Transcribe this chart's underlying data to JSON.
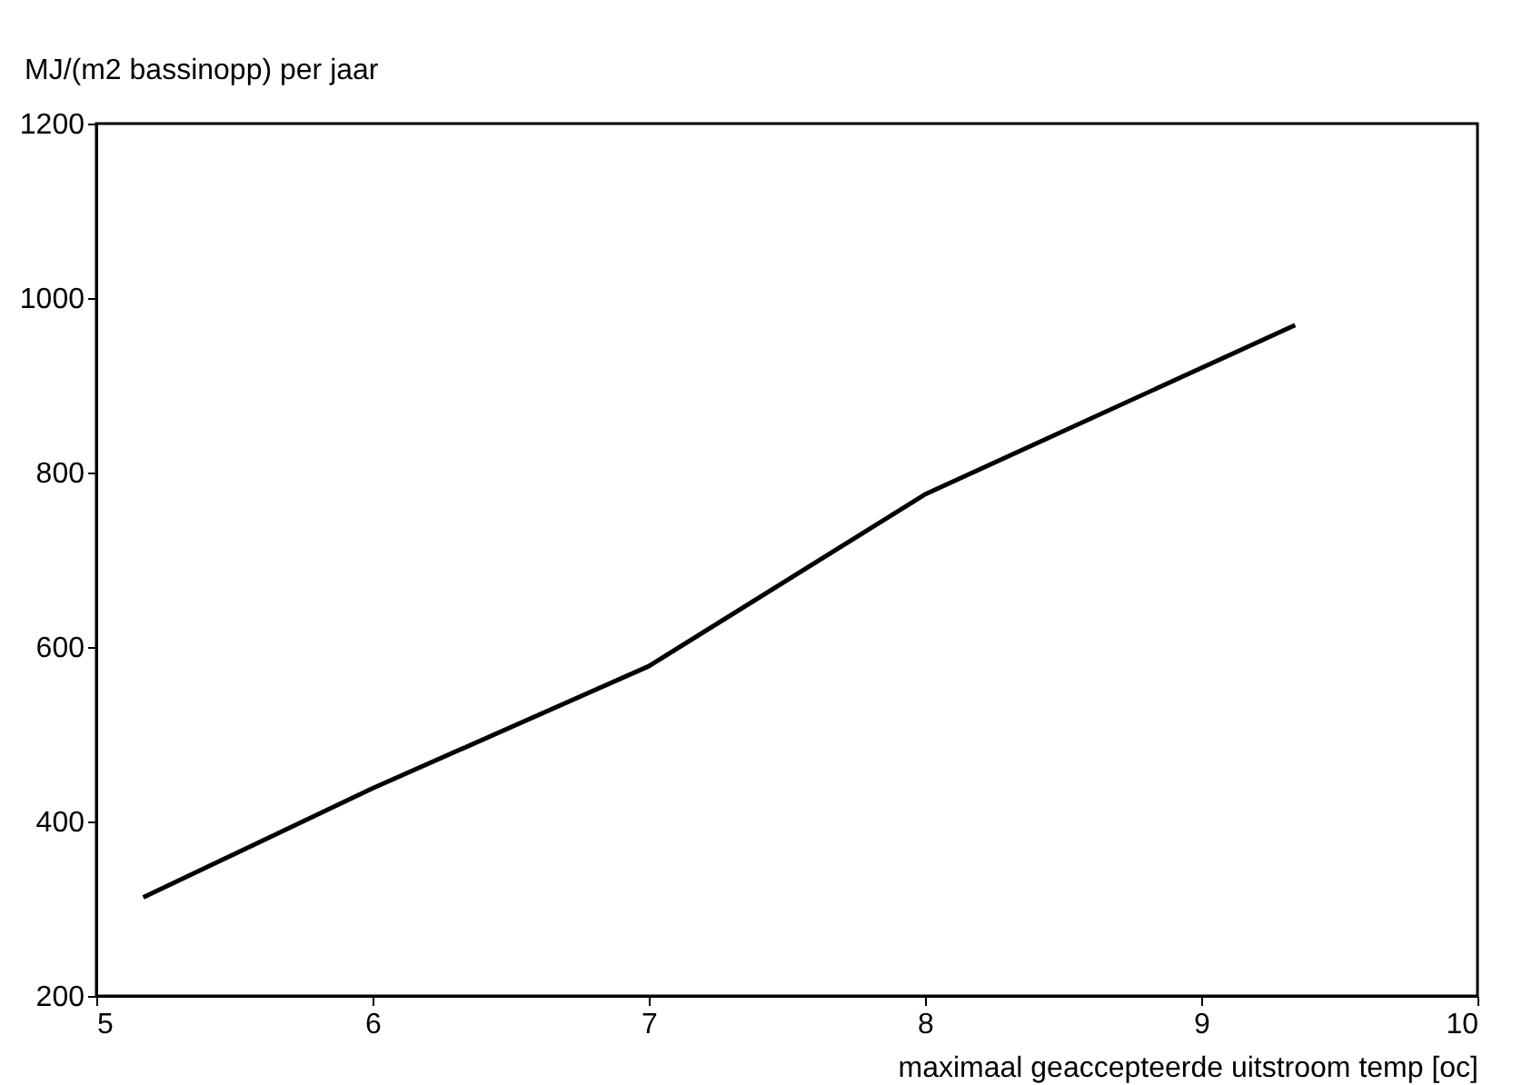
{
  "chart_data": {
    "type": "line",
    "xlabel": "maximaal geaccepteerde uitstroom temp [oc]",
    "ylabel": "MJ/(m2 bassinopp) per jaar",
    "x": [
      5.17,
      6,
      7,
      8,
      9.34
    ],
    "series": [
      {
        "color": "#000000",
        "values": [
          313,
          438,
          578,
          775,
          969
        ]
      }
    ],
    "xlim": [
      5,
      10
    ],
    "xticks": [
      5,
      6,
      7,
      8,
      9,
      10
    ],
    "ylim": [
      200,
      1200
    ],
    "yticks": [
      200,
      400,
      600,
      800,
      1000,
      1200
    ],
    "grid": false,
    "legend": false,
    "marker": "none",
    "line_style": "solid"
  }
}
